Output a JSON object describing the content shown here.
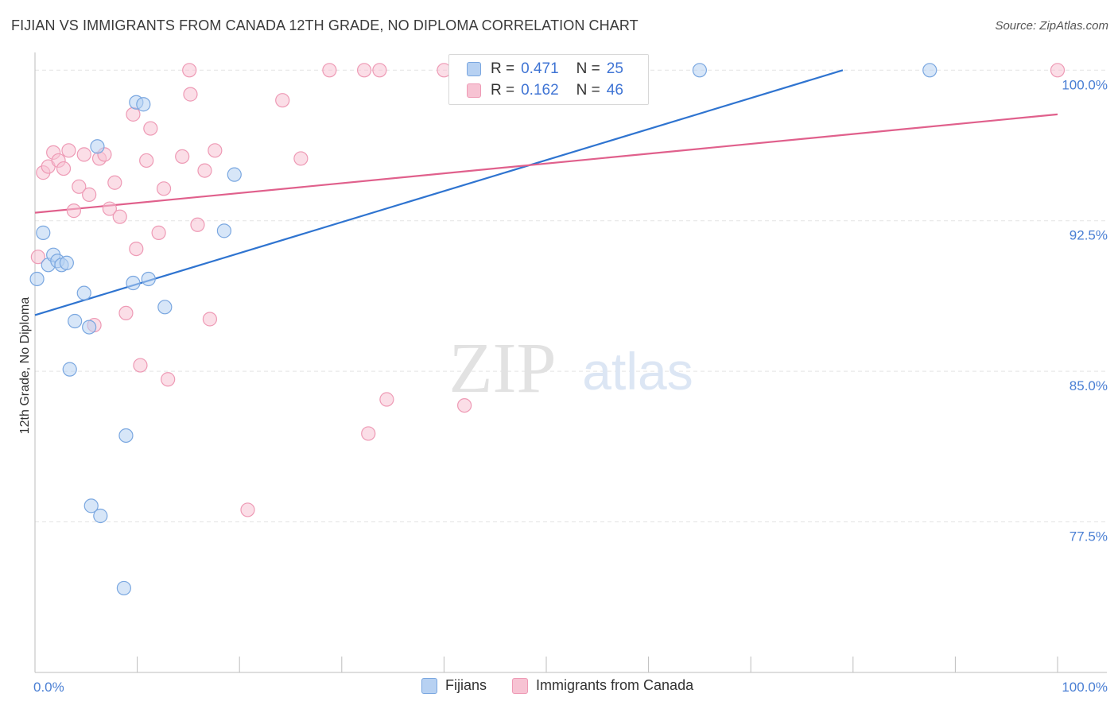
{
  "header": {
    "title": "FIJIAN VS IMMIGRANTS FROM CANADA 12TH GRADE, NO DIPLOMA CORRELATION CHART",
    "source": "Source: ZipAtlas.com"
  },
  "watermark": {
    "zip": "ZIP",
    "atlas": "atlas"
  },
  "legend_top": [
    {
      "r_label": "R =",
      "r_value": "0.471",
      "n_label": "N =",
      "n_value": "25"
    },
    {
      "r_label": "R =",
      "r_value": "0.162",
      "n_label": "N =",
      "n_value": "46"
    }
  ],
  "legend_bottom": [
    {
      "label": "Fijians"
    },
    {
      "label": "Immigrants from Canada"
    }
  ],
  "colors": {
    "fijians_fill": "#b7d1f2",
    "fijians_stroke": "#7aa7e0",
    "fijians_line": "#2f74d0",
    "canada_fill": "#f7c3d3",
    "canada_stroke": "#ee9ab5",
    "canada_line": "#e0608c",
    "tick_label": "#4a7fd4",
    "grid": "#e3e3e3"
  },
  "chart_data": {
    "type": "scatter",
    "title": "FIJIAN VS IMMIGRANTS FROM CANADA 12TH GRADE, NO DIPLOMA CORRELATION CHART",
    "xlabel": "",
    "ylabel": "12th Grade, No Diploma",
    "xlim": [
      0,
      100
    ],
    "ylim": [
      70.0,
      101.2
    ],
    "x_tick_labels": [
      "0.0%",
      "100.0%"
    ],
    "y_ticks": [
      77.5,
      85.0,
      92.5,
      100.0
    ],
    "y_tick_labels": [
      "77.5%",
      "85.0%",
      "92.5%",
      "100.0%"
    ],
    "grid": true,
    "legend_position": "bottom",
    "series": [
      {
        "name": "Fijians",
        "r": 0.471,
        "n": 25,
        "trend": [
          [
            0,
            87.8
          ],
          [
            79,
            100.0
          ]
        ],
        "points": [
          [
            0.2,
            89.6
          ],
          [
            0.8,
            91.9
          ],
          [
            1.3,
            90.3
          ],
          [
            1.8,
            90.8
          ],
          [
            2.2,
            90.5
          ],
          [
            2.6,
            90.3
          ],
          [
            3.1,
            90.4
          ],
          [
            3.4,
            85.1
          ],
          [
            3.9,
            87.5
          ],
          [
            4.8,
            88.9
          ],
          [
            5.3,
            87.2
          ],
          [
            5.5,
            78.3
          ],
          [
            6.4,
            77.8
          ],
          [
            6.1,
            96.2
          ],
          [
            8.7,
            74.2
          ],
          [
            8.9,
            81.8
          ],
          [
            9.6,
            89.4
          ],
          [
            9.9,
            98.4
          ],
          [
            10.6,
            98.3
          ],
          [
            11.1,
            89.6
          ],
          [
            12.7,
            88.2
          ],
          [
            18.5,
            92.0
          ],
          [
            19.5,
            94.8
          ],
          [
            65.0,
            100.0
          ],
          [
            87.5,
            100.0
          ]
        ]
      },
      {
        "name": "Immigrants from Canada",
        "r": 0.162,
        "n": 46,
        "trend": [
          [
            0,
            92.9
          ],
          [
            100,
            97.8
          ]
        ],
        "points": [
          [
            0.3,
            90.7
          ],
          [
            0.8,
            94.9
          ],
          [
            1.3,
            95.2
          ],
          [
            1.8,
            95.9
          ],
          [
            2.3,
            95.5
          ],
          [
            2.8,
            95.1
          ],
          [
            3.3,
            96.0
          ],
          [
            3.8,
            93.0
          ],
          [
            4.3,
            94.2
          ],
          [
            4.8,
            95.8
          ],
          [
            5.3,
            93.8
          ],
          [
            5.8,
            87.3
          ],
          [
            6.3,
            95.6
          ],
          [
            6.8,
            95.8
          ],
          [
            7.3,
            93.1
          ],
          [
            7.8,
            94.4
          ],
          [
            8.3,
            92.7
          ],
          [
            8.9,
            87.9
          ],
          [
            9.6,
            97.8
          ],
          [
            9.9,
            91.1
          ],
          [
            10.3,
            85.3
          ],
          [
            10.9,
            95.5
          ],
          [
            11.3,
            97.1
          ],
          [
            12.1,
            91.9
          ],
          [
            12.6,
            94.1
          ],
          [
            13.0,
            84.6
          ],
          [
            14.4,
            95.7
          ],
          [
            15.1,
            100.0
          ],
          [
            15.2,
            98.8
          ],
          [
            15.9,
            92.3
          ],
          [
            16.6,
            95.0
          ],
          [
            17.1,
            87.6
          ],
          [
            17.6,
            96.0
          ],
          [
            20.8,
            78.1
          ],
          [
            24.2,
            98.5
          ],
          [
            26.0,
            95.6
          ],
          [
            28.8,
            100.0
          ],
          [
            32.2,
            100.0
          ],
          [
            32.6,
            81.9
          ],
          [
            33.7,
            100.0
          ],
          [
            34.4,
            83.6
          ],
          [
            40.0,
            100.0
          ],
          [
            42.0,
            83.3
          ],
          [
            45.5,
            100.0
          ],
          [
            50.5,
            100.0
          ],
          [
            100.0,
            100.0
          ]
        ]
      }
    ]
  }
}
